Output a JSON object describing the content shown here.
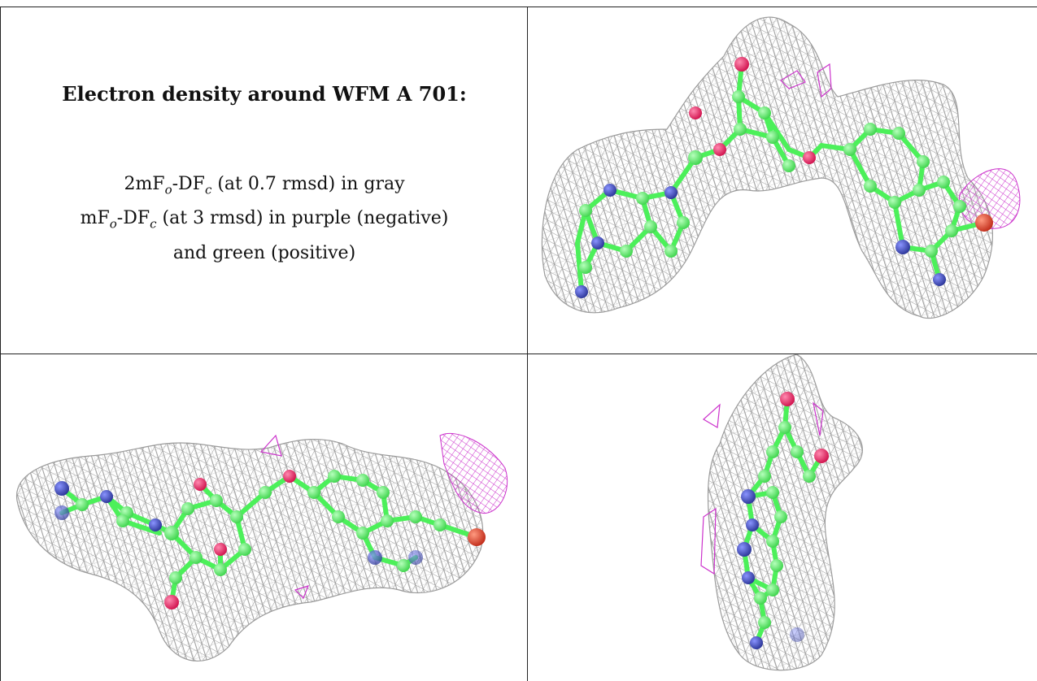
{
  "caption": {
    "title": "Electron density around WFM A 701:",
    "line1": {
      "pre": "2mF",
      "sub1": "o",
      "mid": "-DF",
      "sub2": "c",
      "post": " (at 0.7 rmsd) in gray"
    },
    "line2": {
      "pre": "mF",
      "sub1": "o",
      "mid": "-DF",
      "sub2": "c",
      "post": " (at 3 rmsd) in purple (negative)"
    },
    "line3": "and green (positive)"
  },
  "colors": {
    "mesh": "#9a9a9a",
    "carbon": "#4cf05a",
    "nitrogen": "#3340b0",
    "oxygen": "#e8205a",
    "halogen": "#d8422e",
    "negative_density": "#cc33cc"
  },
  "panels": [
    {
      "id": "view-top-right",
      "subject": "ligand-3d-view"
    },
    {
      "id": "view-bottom-left",
      "subject": "ligand-3d-view"
    },
    {
      "id": "view-bottom-right",
      "subject": "ligand-3d-view"
    }
  ]
}
